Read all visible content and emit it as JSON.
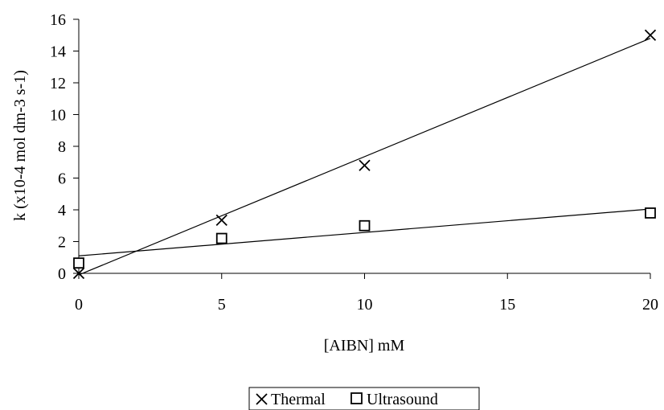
{
  "chart_data": {
    "type": "scatter",
    "title": "",
    "xlabel": "[AIBN] mM",
    "ylabel": "k (x10-4 mol dm-3 s-1)",
    "xlim": [
      0,
      20
    ],
    "ylim": [
      0,
      16
    ],
    "xticks": [
      0,
      5,
      10,
      15,
      20
    ],
    "yticks": [
      0,
      2,
      4,
      6,
      8,
      10,
      12,
      14,
      16
    ],
    "grid": false,
    "legend_position": "bottom",
    "series": [
      {
        "name": "Thermal",
        "marker": "x",
        "x": [
          0,
          5,
          10,
          20
        ],
        "y": [
          0.0,
          3.35,
          6.8,
          15.0
        ],
        "trendline": {
          "x": [
            0,
            20
          ],
          "y": [
            -0.1,
            14.8
          ]
        }
      },
      {
        "name": "Ultrasound",
        "marker": "square",
        "x": [
          0,
          5,
          10,
          20
        ],
        "y": [
          0.65,
          2.2,
          3.0,
          3.8
        ],
        "trendline": {
          "x": [
            0,
            20
          ],
          "y": [
            1.1,
            4.05
          ]
        }
      }
    ]
  }
}
